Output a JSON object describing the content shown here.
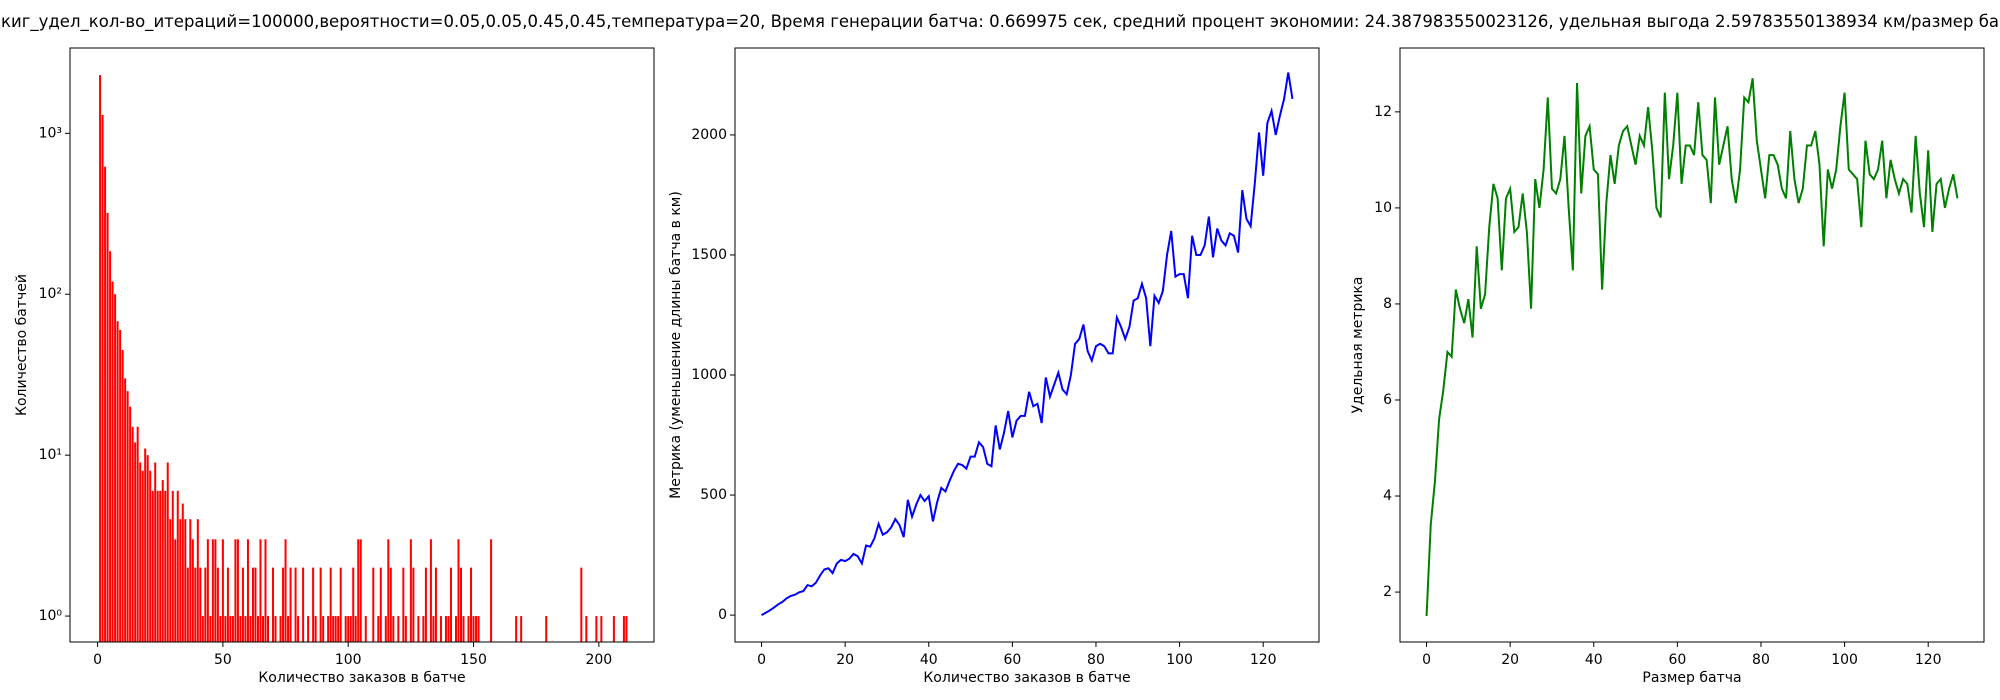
{
  "title": "киг_удел_кол-во_итераций=100000,вероятности=0.05,0.05,0.45,0.45,температура=20, Время генерации батча: 0.669975 сек, средний процент экономии: 24.387983550023126, удельная выгода 2.59783550138934 км/размер ба",
  "chart_data": [
    {
      "type": "bar",
      "xlabel": "Количество заказов в батче",
      "ylabel": "Количество батчей",
      "log_y": true,
      "xlim": [
        -11,
        222
      ],
      "xticks": [
        0,
        50,
        100,
        150,
        200
      ],
      "ylim": [
        0.69,
        3390
      ],
      "yticks": [
        {
          "value": 1,
          "label": "10⁰"
        },
        {
          "value": 10,
          "label": "10¹"
        },
        {
          "value": 100,
          "label": "10²"
        },
        {
          "value": 1000,
          "label": "10³"
        }
      ],
      "x": [
        1,
        2,
        3,
        4,
        5,
        6,
        7,
        8,
        9,
        10,
        11,
        12,
        13,
        14,
        15,
        16,
        17,
        18,
        19,
        20,
        21,
        22,
        23,
        24,
        25,
        26,
        27,
        28,
        29,
        30,
        31,
        32,
        33,
        34,
        35,
        36,
        37,
        38,
        39,
        40,
        41,
        42,
        43,
        44,
        45,
        46,
        47,
        48,
        49,
        50,
        51,
        52,
        53,
        54,
        55,
        56,
        57,
        58,
        59,
        60,
        61,
        62,
        63,
        64,
        65,
        66,
        67,
        68,
        70,
        71,
        73,
        74,
        75,
        76,
        77,
        79,
        80,
        82,
        84,
        86,
        87,
        89,
        90,
        92,
        93,
        94,
        95,
        96,
        97,
        99,
        100,
        101,
        102,
        103,
        104,
        105,
        107,
        110,
        112,
        113,
        115,
        116,
        117,
        118,
        120,
        122,
        123,
        125,
        126,
        128,
        130,
        131,
        133,
        134,
        135,
        137,
        139,
        140,
        141,
        143,
        144,
        145,
        146,
        148,
        149,
        150,
        151,
        152,
        157,
        167,
        169,
        179,
        193,
        195,
        199,
        201,
        206,
        210,
        211
      ],
      "series": [
        {
          "color": "#ff0000",
          "values": [
            2300,
            1300,
            620,
            320,
            185,
            120,
            100,
            68,
            60,
            45,
            30,
            25,
            20,
            15,
            12,
            15,
            9,
            8,
            11,
            10,
            8,
            6,
            9,
            6,
            6,
            7,
            6,
            9,
            4,
            6,
            3,
            6,
            4,
            5,
            4,
            2,
            4,
            3,
            2,
            4,
            2,
            1,
            2,
            3,
            1,
            3,
            3,
            2,
            1,
            3,
            1,
            2,
            1,
            1,
            3,
            3,
            1,
            2,
            1,
            3,
            1,
            2,
            2,
            1,
            3,
            1,
            3,
            1,
            2,
            1,
            1,
            2,
            3,
            1,
            2,
            2,
            1,
            2,
            1,
            2,
            1,
            2,
            1,
            1,
            2,
            1,
            1,
            1,
            2,
            1,
            1,
            1,
            2,
            1,
            3,
            3,
            1,
            2,
            1,
            2,
            1,
            3,
            2,
            1,
            1,
            2,
            1,
            3,
            2,
            1,
            1,
            2,
            3,
            1,
            2,
            1,
            1,
            1,
            2,
            1,
            3,
            2,
            1,
            1,
            2,
            1,
            1,
            1,
            3,
            1,
            1,
            1,
            2,
            1,
            1,
            1,
            1,
            1,
            1
          ]
        }
      ]
    },
    {
      "type": "line",
      "xlabel": "Количество заказов в батче",
      "ylabel": "Метрика (уменьшение длины батча в км)",
      "log_y": false,
      "xlim": [
        -6.35,
        133.35
      ],
      "xticks": [
        0,
        20,
        40,
        60,
        80,
        100,
        120
      ],
      "ylim": [
        -112,
        2362
      ],
      "yticks": [
        0,
        500,
        1000,
        1500,
        2000
      ],
      "x": [
        0,
        1,
        2,
        3,
        4,
        5,
        6,
        7,
        8,
        9,
        10,
        11,
        12,
        13,
        14,
        15,
        16,
        17,
        18,
        19,
        20,
        21,
        22,
        23,
        24,
        25,
        26,
        27,
        28,
        29,
        30,
        31,
        32,
        33,
        34,
        35,
        36,
        37,
        38,
        39,
        40,
        41,
        42,
        43,
        44,
        45,
        46,
        47,
        48,
        49,
        50,
        51,
        52,
        53,
        54,
        55,
        56,
        57,
        58,
        59,
        60,
        61,
        62,
        63,
        64,
        65,
        66,
        67,
        68,
        69,
        70,
        71,
        72,
        73,
        74,
        75,
        76,
        77,
        78,
        79,
        80,
        81,
        82,
        83,
        84,
        85,
        86,
        87,
        88,
        89,
        90,
        91,
        92,
        93,
        94,
        95,
        96,
        97,
        98,
        99,
        100,
        101,
        102,
        103,
        104,
        105,
        106,
        107,
        108,
        109,
        110,
        111,
        112,
        113,
        114,
        115,
        116,
        117,
        118,
        119,
        120,
        121,
        122,
        123,
        124,
        125,
        126,
        127
      ],
      "series": [
        {
          "color": "#0000ff",
          "values": [
            0,
            10,
            20,
            32,
            45,
            55,
            70,
            80,
            85,
            95,
            100,
            125,
            120,
            135,
            165,
            190,
            195,
            175,
            215,
            230,
            225,
            235,
            255,
            245,
            215,
            290,
            285,
            320,
            380,
            335,
            345,
            365,
            400,
            375,
            325,
            480,
            410,
            460,
            500,
            475,
            495,
            390,
            470,
            530,
            515,
            560,
            600,
            630,
            625,
            610,
            660,
            660,
            720,
            700,
            630,
            620,
            790,
            690,
            760,
            850,
            740,
            810,
            830,
            830,
            930,
            870,
            880,
            800,
            990,
            910,
            960,
            1010,
            940,
            920,
            1000,
            1130,
            1150,
            1210,
            1100,
            1060,
            1120,
            1130,
            1120,
            1090,
            1090,
            1240,
            1200,
            1150,
            1200,
            1310,
            1320,
            1380,
            1320,
            1120,
            1330,
            1300,
            1350,
            1500,
            1600,
            1410,
            1420,
            1420,
            1320,
            1580,
            1500,
            1500,
            1540,
            1660,
            1490,
            1610,
            1560,
            1540,
            1590,
            1580,
            1510,
            1770,
            1650,
            1620,
            1800,
            2010,
            1830,
            2050,
            2100,
            2000,
            2080,
            2150,
            2260,
            2150
          ]
        }
      ]
    },
    {
      "type": "line",
      "xlabel": "Размер батча",
      "ylabel": "Удельная метрика",
      "log_y": false,
      "xlim": [
        -6.35,
        133.35
      ],
      "xticks": [
        0,
        20,
        40,
        60,
        80,
        100,
        120
      ],
      "ylim": [
        0.96,
        13.33
      ],
      "yticks": [
        2,
        4,
        6,
        8,
        10,
        12
      ],
      "x": [
        0,
        1,
        2,
        3,
        4,
        5,
        6,
        7,
        8,
        9,
        10,
        11,
        12,
        13,
        14,
        15,
        16,
        17,
        18,
        19,
        20,
        21,
        22,
        23,
        24,
        25,
        26,
        27,
        28,
        29,
        30,
        31,
        32,
        33,
        34,
        35,
        36,
        37,
        38,
        39,
        40,
        41,
        42,
        43,
        44,
        45,
        46,
        47,
        48,
        49,
        50,
        51,
        52,
        53,
        54,
        55,
        56,
        57,
        58,
        59,
        60,
        61,
        62,
        63,
        64,
        65,
        66,
        67,
        68,
        69,
        70,
        71,
        72,
        73,
        74,
        75,
        76,
        77,
        78,
        79,
        80,
        81,
        82,
        83,
        84,
        85,
        86,
        87,
        88,
        89,
        90,
        91,
        92,
        93,
        94,
        95,
        96,
        97,
        98,
        99,
        100,
        101,
        102,
        103,
        104,
        105,
        106,
        107,
        108,
        109,
        110,
        111,
        112,
        113,
        114,
        115,
        116,
        117,
        118,
        119,
        120,
        121,
        122,
        123,
        124,
        125,
        126,
        127
      ],
      "series": [
        {
          "color": "#008000",
          "values": [
            1.5,
            3.4,
            4.3,
            5.6,
            6.2,
            7.0,
            6.9,
            8.3,
            7.9,
            7.6,
            8.1,
            7.3,
            9.2,
            7.9,
            8.2,
            9.6,
            10.5,
            10.2,
            8.7,
            10.2,
            10.4,
            9.5,
            9.6,
            10.3,
            9.5,
            7.9,
            10.6,
            10.0,
            10.8,
            12.3,
            10.4,
            10.3,
            10.6,
            11.5,
            10.0,
            8.7,
            12.6,
            10.3,
            11.5,
            11.7,
            10.8,
            10.7,
            8.3,
            10.1,
            11.1,
            10.5,
            11.3,
            11.6,
            11.7,
            11.3,
            10.9,
            11.5,
            11.3,
            12.1,
            11.2,
            10.0,
            9.8,
            12.4,
            10.6,
            11.3,
            12.4,
            10.5,
            11.3,
            11.3,
            11.1,
            12.2,
            11.1,
            11.0,
            10.1,
            12.3,
            10.9,
            11.3,
            11.7,
            10.6,
            10.1,
            10.8,
            12.3,
            12.2,
            12.7,
            11.4,
            10.8,
            10.2,
            11.1,
            11.1,
            10.9,
            10.4,
            10.2,
            11.6,
            10.6,
            10.1,
            10.4,
            11.3,
            11.3,
            11.6,
            10.9,
            9.2,
            10.8,
            10.4,
            10.8,
            11.7,
            12.4,
            10.8,
            10.7,
            10.6,
            9.6,
            11.4,
            10.7,
            10.6,
            10.8,
            11.4,
            10.2,
            11.0,
            10.6,
            10.3,
            10.6,
            10.5,
            9.9,
            11.5,
            10.3,
            9.6,
            11.2,
            9.5,
            10.5,
            10.6,
            10.0,
            10.4,
            10.7,
            10.2
          ]
        }
      ]
    }
  ]
}
